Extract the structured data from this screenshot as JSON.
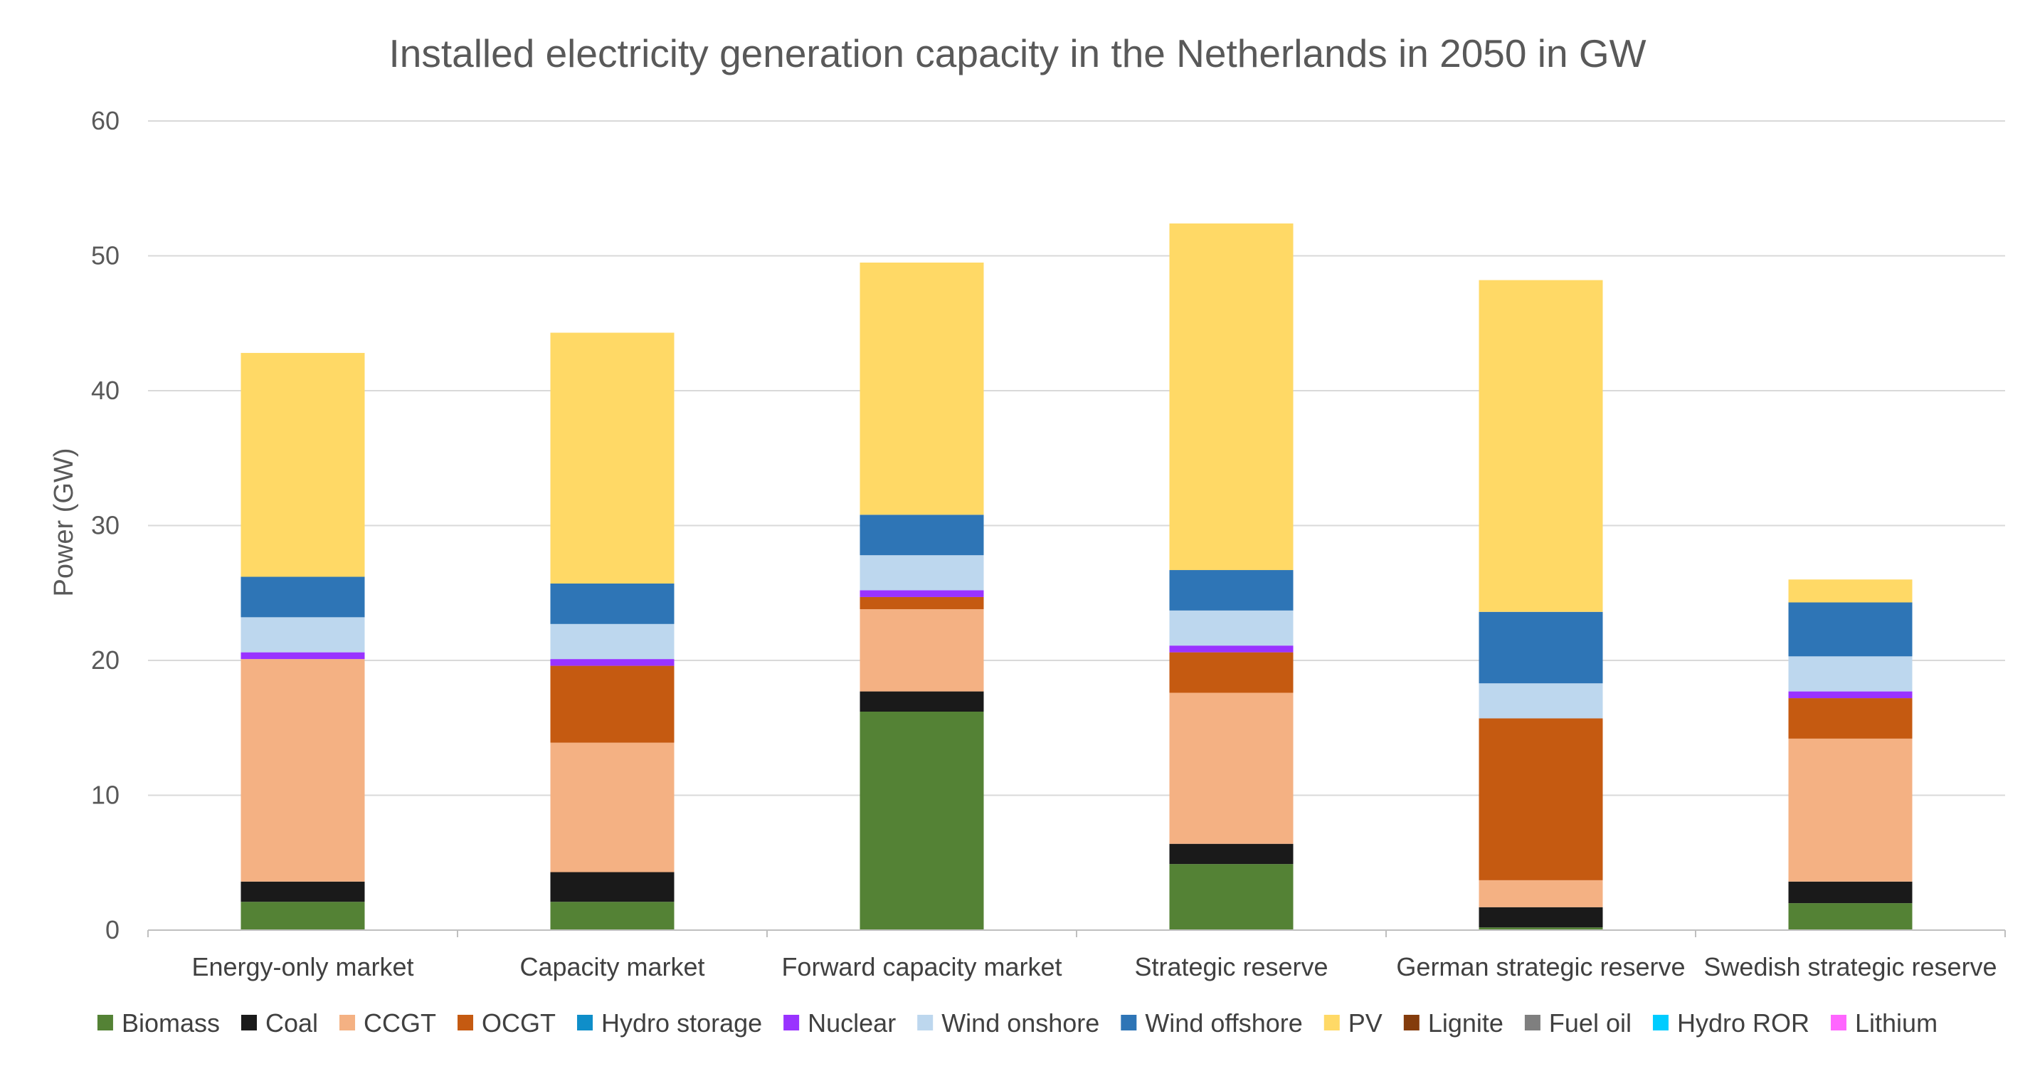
{
  "chart_data": {
    "type": "bar",
    "stacked": true,
    "title": "Installed electricity generation capacity in the Netherlands in 2050 in GW",
    "xlabel": "",
    "ylabel": "Power (GW)",
    "ylim": [
      0,
      60
    ],
    "yticks": [
      0,
      10,
      20,
      30,
      40,
      50,
      60
    ],
    "grid": true,
    "legend_position": "bottom",
    "categories": [
      "Energy-only market",
      "Capacity market",
      "Forward capacity market",
      "Strategic reserve",
      "German strategic reserve",
      "Swedish strategic reserve"
    ],
    "series": [
      {
        "name": "Biomass",
        "color": "#548235",
        "values": [
          2.1,
          2.1,
          16.2,
          4.9,
          0.2,
          2.0
        ]
      },
      {
        "name": "Coal",
        "color": "#1a1a1a",
        "values": [
          1.5,
          2.2,
          1.5,
          1.5,
          1.5,
          1.6
        ]
      },
      {
        "name": "CCGT",
        "color": "#f4b183",
        "values": [
          16.5,
          9.6,
          6.1,
          11.2,
          2.0,
          10.6
        ]
      },
      {
        "name": "OCGT",
        "color": "#c55a11",
        "values": [
          0.0,
          5.7,
          0.9,
          3.0,
          12.0,
          3.0
        ]
      },
      {
        "name": "Hydro storage",
        "color": "#0f8ec9",
        "values": [
          0.0,
          0.0,
          0.0,
          0.0,
          0.0,
          0.0
        ]
      },
      {
        "name": "Nuclear",
        "color": "#9933ff",
        "values": [
          0.5,
          0.5,
          0.5,
          0.5,
          0.0,
          0.5
        ]
      },
      {
        "name": "Wind onshore",
        "color": "#bdd7ee",
        "values": [
          2.6,
          2.6,
          2.6,
          2.6,
          2.6,
          2.6
        ]
      },
      {
        "name": "Wind offshore",
        "color": "#2e75b6",
        "values": [
          3.0,
          3.0,
          3.0,
          3.0,
          5.3,
          4.0
        ]
      },
      {
        "name": "PV",
        "color": "#ffd966",
        "values": [
          16.6,
          18.6,
          18.7,
          25.7,
          24.6,
          1.7
        ]
      },
      {
        "name": "Lignite",
        "color": "#843c0c",
        "values": [
          0,
          0,
          0,
          0,
          0,
          0
        ]
      },
      {
        "name": "Fuel oil",
        "color": "#7f7f7f",
        "values": [
          0,
          0,
          0,
          0,
          0,
          0
        ]
      },
      {
        "name": "Hydro ROR",
        "color": "#00ccff",
        "values": [
          0,
          0,
          0,
          0,
          0,
          0
        ]
      },
      {
        "name": "Lithium",
        "color": "#ff66ff",
        "values": [
          0,
          0,
          0,
          0,
          0,
          0
        ]
      }
    ]
  }
}
